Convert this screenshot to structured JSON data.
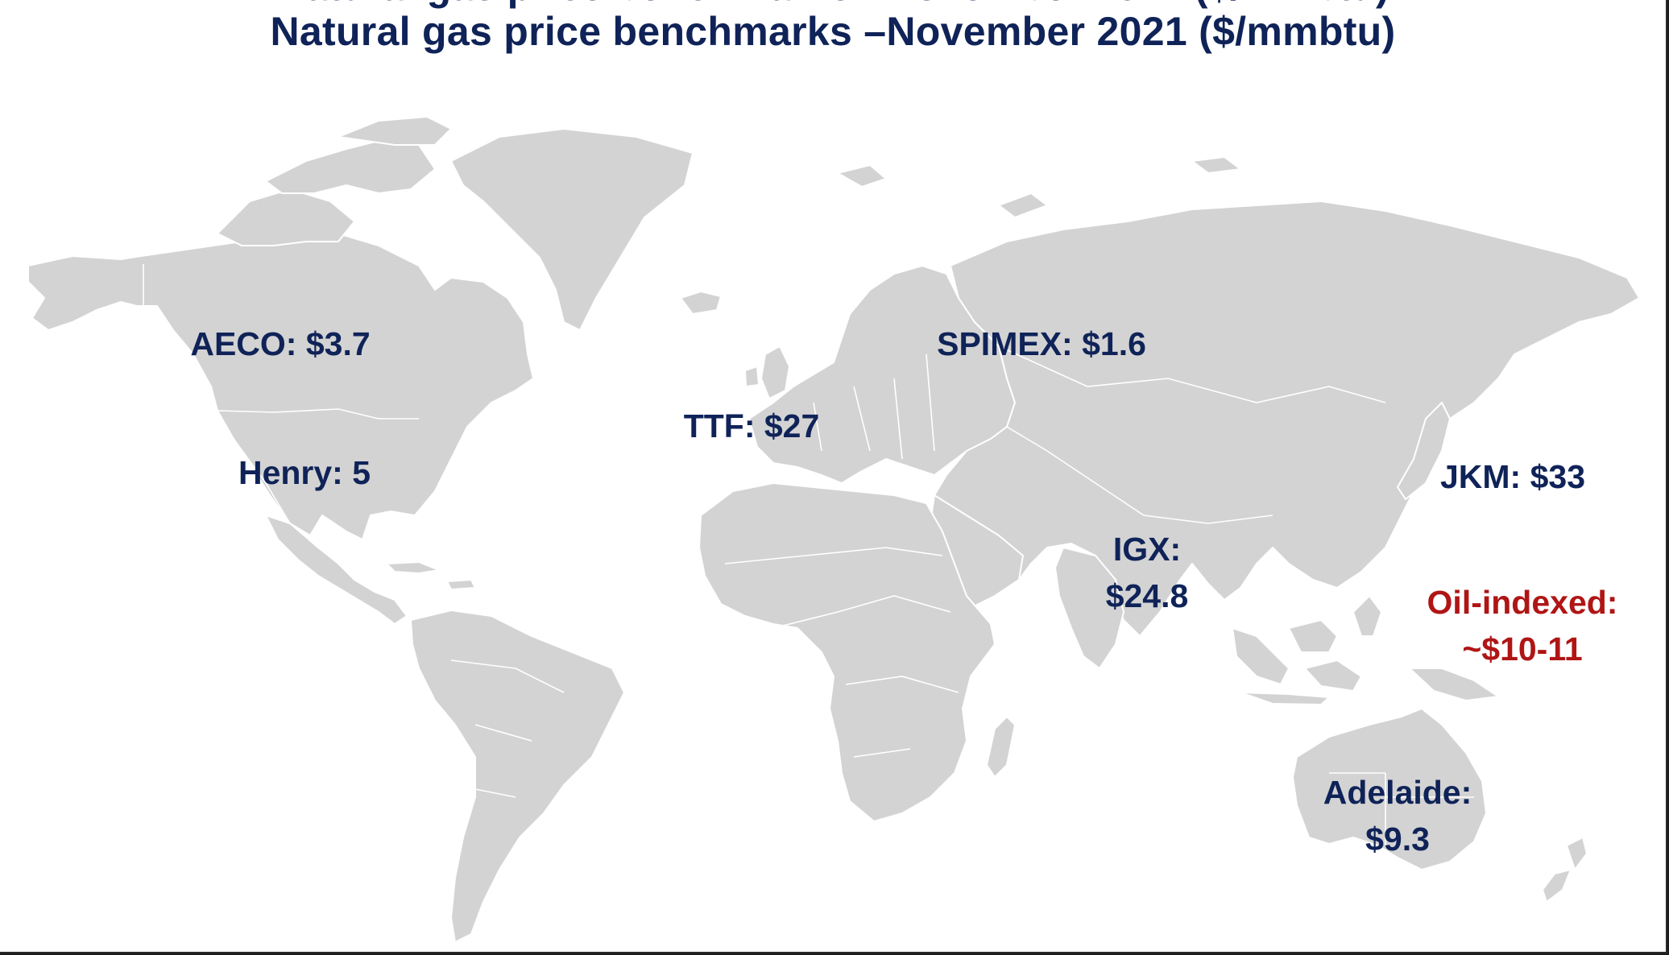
{
  "title": "Natural gas price benchmarks –November 2021 ($/mmbtu)",
  "colors": {
    "title": "#0f2358",
    "label": "#0f2358",
    "oil_indexed": "#b01515",
    "land": "#d3d3d3",
    "border": "#ffffff"
  },
  "benchmarks": {
    "aeco": {
      "text": "AECO: $3.7"
    },
    "henry": {
      "text": "Henry: 5"
    },
    "ttf": {
      "text": "TTF: $27"
    },
    "spimex": {
      "text": "SPIMEX: $1.6"
    },
    "jkm": {
      "text": "JKM: $33"
    },
    "igx": {
      "line1": "IGX:",
      "line2": "$24.8"
    },
    "oil_indexed": {
      "line1": "Oil-indexed:",
      "line2": "~$10-11"
    },
    "adelaide": {
      "line1": "Adelaide:",
      "line2": "$9.3"
    }
  }
}
